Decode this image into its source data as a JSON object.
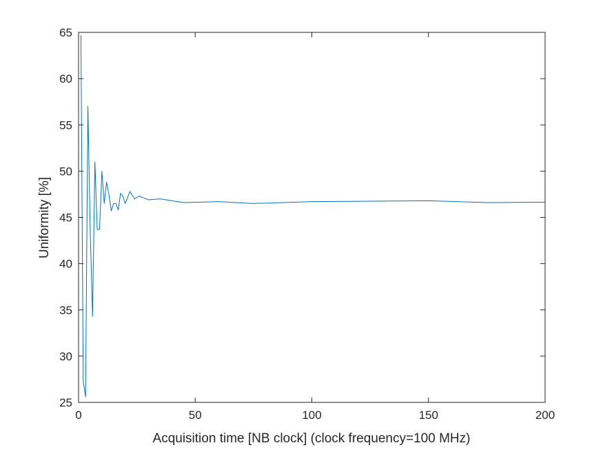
{
  "chart_data": {
    "type": "line",
    "title": "",
    "xlabel": "Acquisition time [NB clock] (clock frequency=100 MHz)",
    "ylabel": "Uniformity [%]",
    "xlim": [
      0,
      200
    ],
    "ylim": [
      25,
      65
    ],
    "xticks": [
      0,
      50,
      100,
      150,
      200
    ],
    "yticks": [
      25,
      30,
      35,
      40,
      45,
      50,
      55,
      60,
      65
    ],
    "grid": false,
    "legend": "none",
    "series": [
      {
        "color": "#0072BD",
        "x": [
          1,
          2,
          3,
          4,
          5,
          6,
          7,
          8,
          9,
          10,
          11,
          12,
          13,
          14,
          15,
          16,
          17,
          18,
          19,
          20,
          22,
          24,
          26,
          28,
          30,
          35,
          40,
          45,
          60,
          75,
          100,
          125,
          150,
          175,
          200
        ],
        "y": [
          64.7,
          27.3,
          25.6,
          57.0,
          43.5,
          34.3,
          51.0,
          43.7,
          43.7,
          50.0,
          46.5,
          48.8,
          47.5,
          45.7,
          46.5,
          46.5,
          45.8,
          47.6,
          47.3,
          46.5,
          47.8,
          47.0,
          47.3,
          47.1,
          46.9,
          47.0,
          46.8,
          46.6,
          46.7,
          46.5,
          46.7,
          46.75,
          46.8,
          46.6,
          46.65
        ]
      }
    ]
  }
}
